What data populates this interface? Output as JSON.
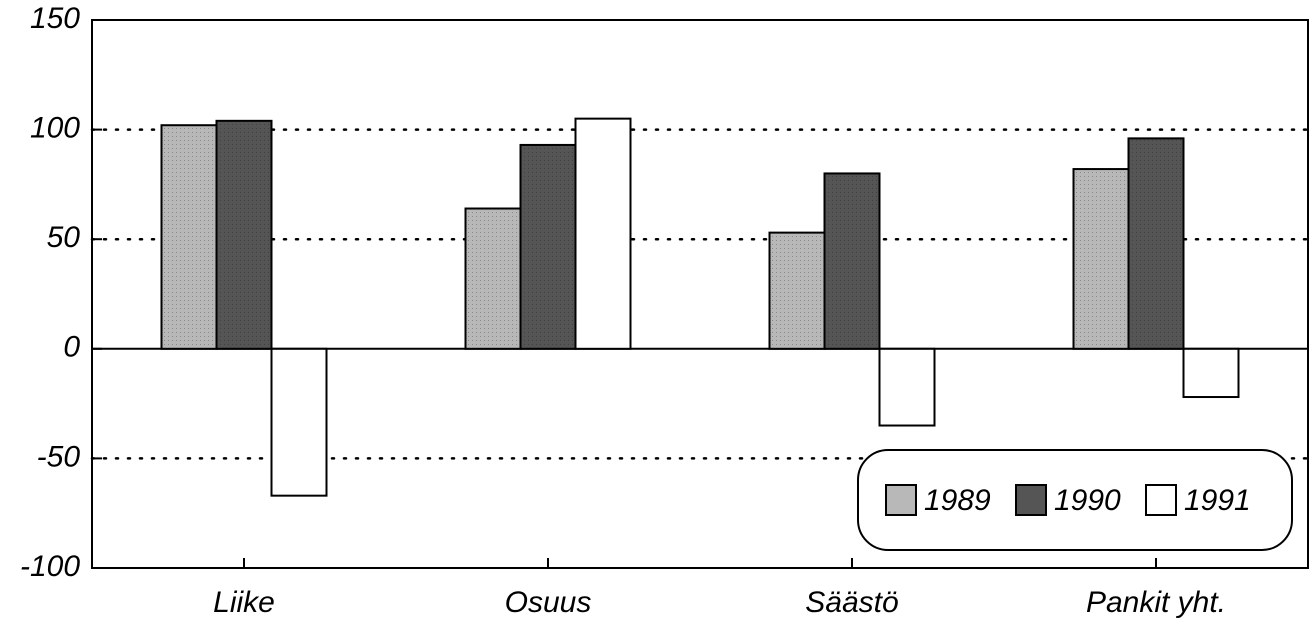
{
  "chart_data": {
    "type": "bar",
    "categories": [
      "Liike",
      "Osuus",
      "Säästö",
      "Pankit yht."
    ],
    "series": [
      {
        "name": "1989",
        "color": "#b8b8b8",
        "values": [
          102,
          64,
          53,
          82
        ]
      },
      {
        "name": "1990",
        "color": "#555555",
        "values": [
          104,
          93,
          80,
          96
        ]
      },
      {
        "name": "1991",
        "color": "#ffffff",
        "values": [
          -67,
          105,
          -35,
          -22
        ]
      }
    ],
    "ylim": [
      -100,
      150
    ],
    "yticks": [
      -100,
      -50,
      0,
      50,
      100,
      150
    ],
    "grid": true,
    "legend": "lower right"
  }
}
